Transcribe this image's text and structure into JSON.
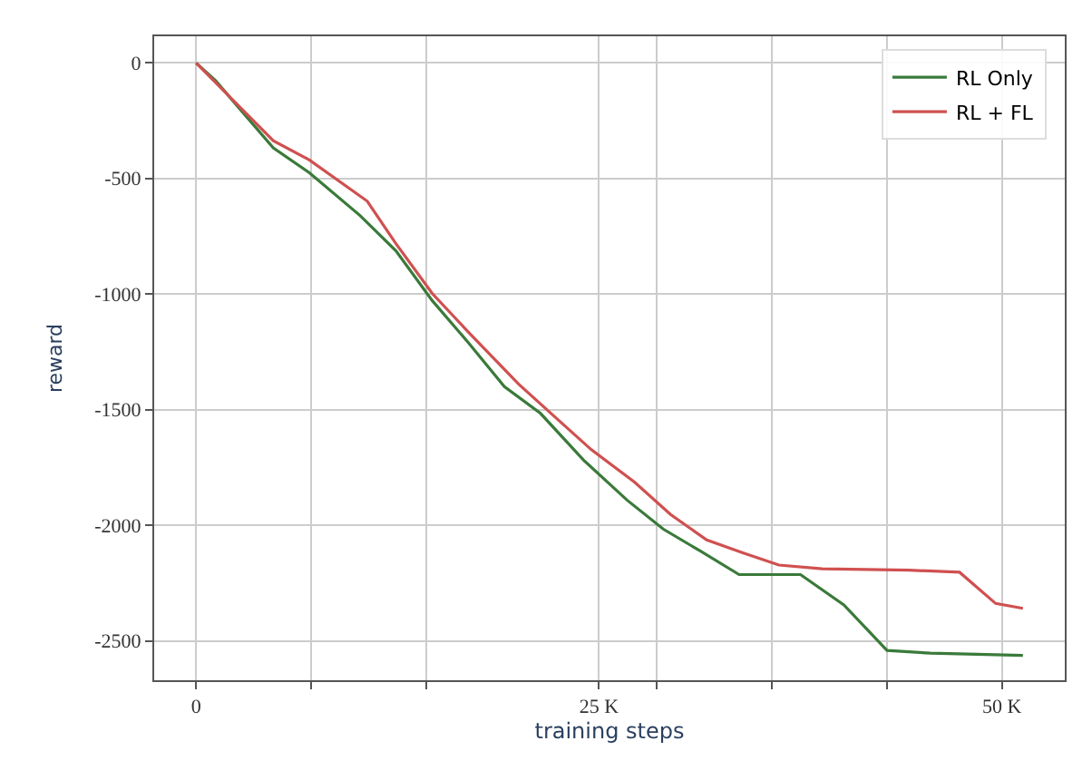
{
  "chart_data": {
    "type": "line",
    "xlabel": "training steps",
    "ylabel": "reward",
    "xlim": [
      -2600,
      53900
    ],
    "ylim": [
      -2670,
      115
    ],
    "xticks": [
      {
        "value": 0,
        "label": "0"
      },
      {
        "value": 7143,
        "label": null
      },
      {
        "value": 14286,
        "label": null
      },
      {
        "value": 25000,
        "label": "25 K"
      },
      {
        "value": 28571,
        "label": null
      },
      {
        "value": 35714,
        "label": null
      },
      {
        "value": 42857,
        "label": null
      },
      {
        "value": 50000,
        "label": "50 K"
      }
    ],
    "yticks": [
      0,
      -500,
      -1000,
      -1500,
      -2000,
      -2500
    ],
    "grid": true,
    "legend": "top right",
    "line_style": "solid",
    "marker": "none",
    "series": [
      {
        "name": "RL Only",
        "color": "#3a7a3a",
        "x": [
          0,
          1210,
          4790,
          7030,
          10170,
          12400,
          14650,
          16890,
          19130,
          21370,
          24060,
          26740,
          28980,
          31230,
          33690,
          37500,
          40190,
          42870,
          45560,
          51300
        ],
        "values": [
          0,
          -77,
          -368,
          -475,
          -660,
          -813,
          -1028,
          -1210,
          -1400,
          -1516,
          -1719,
          -1891,
          -2016,
          -2109,
          -2213,
          -2213,
          -2344,
          -2541,
          -2553,
          -2563
        ]
      },
      {
        "name": "RL + FL",
        "color": "#d05050",
        "x": [
          0,
          4790,
          7030,
          10620,
          12400,
          14650,
          16890,
          20020,
          22260,
          24510,
          27200,
          29440,
          31680,
          33920,
          36160,
          38850,
          44230,
          47370,
          49610,
          51300
        ],
        "values": [
          0,
          -337,
          -420,
          -598,
          -782,
          -997,
          -1164,
          -1390,
          -1531,
          -1672,
          -1813,
          -1953,
          -2063,
          -2119,
          -2172,
          -2188,
          -2194,
          -2203,
          -2338,
          -2359
        ]
      }
    ]
  }
}
